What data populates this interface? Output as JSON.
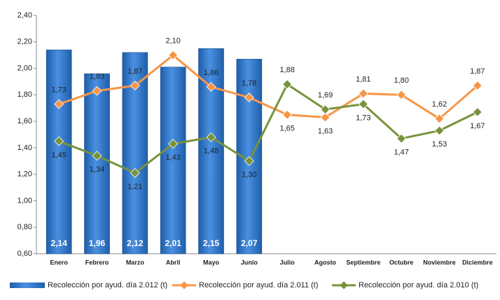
{
  "chart_data": {
    "type": "combo",
    "categories": [
      "Enero",
      "Febrero",
      "Marzo",
      "Abril",
      "Mayo",
      "Junio",
      "Julio",
      "Agosto",
      "Septiembre",
      "Octubre",
      "Noviembre",
      "Diciembre"
    ],
    "ylim": [
      0.6,
      2.4
    ],
    "yticks": [
      {
        "value": 0.6,
        "label": "0,60"
      },
      {
        "value": 0.8,
        "label": "0,80"
      },
      {
        "value": 1.0,
        "label": "1,00"
      },
      {
        "value": 1.2,
        "label": "1,20"
      },
      {
        "value": 1.4,
        "label": "1,40"
      },
      {
        "value": 1.6,
        "label": "1,60"
      },
      {
        "value": 1.8,
        "label": "1,80"
      },
      {
        "value": 2.0,
        "label": "2,00"
      },
      {
        "value": 2.2,
        "label": "2,20"
      },
      {
        "value": 2.4,
        "label": "2,40"
      }
    ],
    "grid": false,
    "legend": "bottom",
    "series": [
      {
        "name": "Recolección por ayud. día 2.012 (t)",
        "type": "bar",
        "color": "#2e75c6",
        "values": [
          2.14,
          1.96,
          2.12,
          2.01,
          2.15,
          2.07,
          null,
          null,
          null,
          null,
          null,
          null
        ],
        "value_labels": [
          "2,14",
          "1,96",
          "2,12",
          "2,01",
          "2,15",
          "2,07",
          null,
          null,
          null,
          null,
          null,
          null
        ]
      },
      {
        "name": "Recolección por ayud. día 2.011 (t)",
        "type": "line",
        "color": "#f79646",
        "values": [
          1.73,
          1.83,
          1.87,
          2.1,
          1.86,
          1.78,
          1.65,
          1.63,
          1.81,
          1.8,
          1.62,
          1.87
        ],
        "value_labels": [
          "1,73",
          "1,83",
          "1,87",
          "2,10",
          "1,86",
          "1,78",
          "1,65",
          "1,63",
          "1,81",
          "1,80",
          "1,62",
          "1,87"
        ]
      },
      {
        "name": "Recolección por ayud. día 2.010 (t)",
        "type": "line",
        "color": "#77933c",
        "values": [
          1.45,
          1.34,
          1.21,
          1.43,
          1.48,
          1.3,
          1.88,
          1.69,
          1.73,
          1.47,
          1.53,
          1.67
        ],
        "value_labels": [
          "1,45",
          "1,34",
          "1,21",
          "1,43",
          "1,48",
          "1,30",
          "1,88",
          "1,69",
          "1,73",
          "1,47",
          "1,53",
          "1,67"
        ]
      }
    ]
  }
}
